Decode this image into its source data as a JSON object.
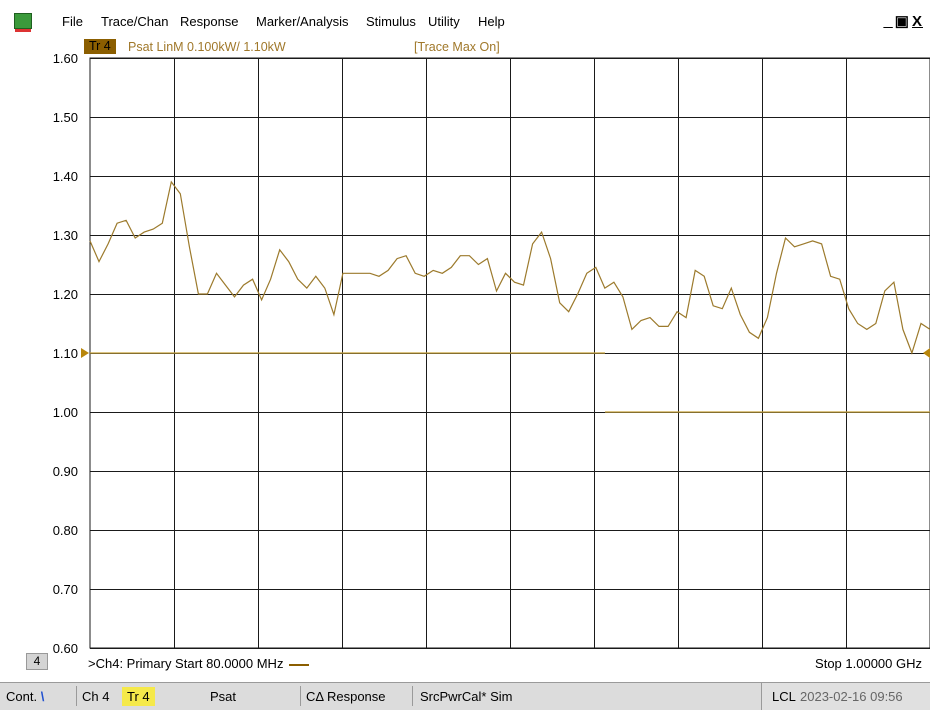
{
  "menubar": {
    "items": [
      "File",
      "Trace/Chan",
      "Response",
      "Marker/Analysis",
      "Stimulus",
      "Utility",
      "Help"
    ],
    "window_controls": [
      "_",
      "̅",
      "X"
    ]
  },
  "trace_header": {
    "badge": "Tr 4",
    "description": "Psat LinM 0.100kW/  1.10kW",
    "status": "[Trace Max On]"
  },
  "plot": {
    "colors": {
      "trace": "#9c7a2c",
      "reference": "#c7a23a",
      "grid": "#1a1a1a",
      "marker": "#b8860b"
    }
  },
  "chart_data": {
    "type": "line",
    "title": "",
    "xlabel": "",
    "ylabel": "",
    "x_start_mhz": 80,
    "x_stop_mhz": 1000,
    "ylim": [
      0.6,
      1.6
    ],
    "yticks": [
      "1.60",
      "1.50",
      "1.40",
      "1.30",
      "1.20",
      "1.10",
      "1.00",
      "0.90",
      "0.80",
      "0.70",
      "0.60"
    ],
    "grid": true,
    "reference_level": 1.1,
    "secondary_level": 1.0,
    "series": [
      {
        "values": [
          1.29,
          1.255,
          1.285,
          1.32,
          1.325,
          1.295,
          1.305,
          1.31,
          1.32,
          1.39,
          1.37,
          1.28,
          1.2,
          1.2,
          1.235,
          1.215,
          1.195,
          1.215,
          1.225,
          1.19,
          1.225,
          1.275,
          1.255,
          1.225,
          1.21,
          1.23,
          1.21,
          1.165,
          1.235,
          1.235,
          1.235,
          1.235,
          1.23,
          1.24,
          1.26,
          1.265,
          1.235,
          1.23,
          1.24,
          1.235,
          1.245,
          1.265,
          1.265,
          1.25,
          1.26,
          1.205,
          1.235,
          1.22,
          1.215,
          1.285,
          1.305,
          1.26,
          1.185,
          1.17,
          1.2,
          1.235,
          1.245,
          1.21,
          1.22,
          1.195,
          1.14,
          1.155,
          1.16,
          1.145,
          1.145,
          1.17,
          1.16,
          1.24,
          1.23,
          1.18,
          1.175,
          1.21,
          1.165,
          1.135,
          1.125,
          1.16,
          1.235,
          1.295,
          1.28,
          1.285,
          1.29,
          1.285,
          1.23,
          1.225,
          1.175,
          1.15,
          1.14,
          1.15,
          1.205,
          1.22,
          1.14,
          1.1,
          1.15,
          1.14
        ]
      }
    ]
  },
  "info_line": {
    "channel_number": "4",
    "start": ">Ch4: Primary  Start  80.0000 MHz",
    "stop": "Stop  1.00000 GHz"
  },
  "statusbar": {
    "cont": "Cont.",
    "cont_mark": "\\",
    "channel": "Ch 4",
    "trace": "Tr 4",
    "measurement": "Psat",
    "response": "CΔ Response",
    "cal": "SrcPwrCal* Sim",
    "lcl": "LCL",
    "datetime": "2023-02-16 09:56"
  }
}
